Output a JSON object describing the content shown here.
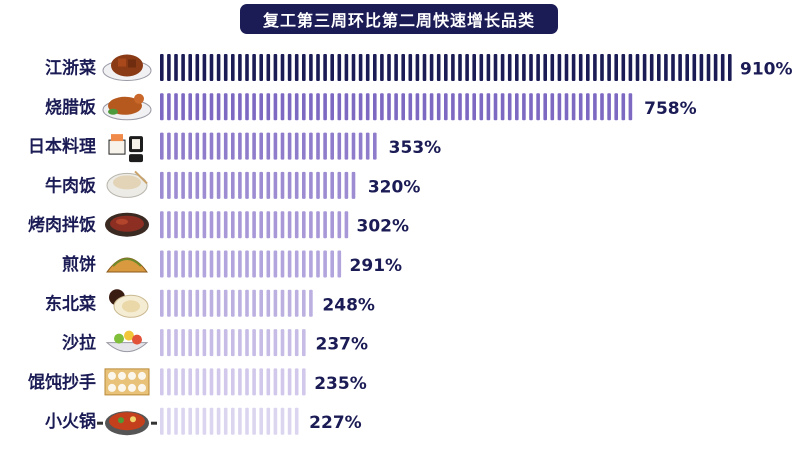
{
  "colors": {
    "title_bg": "#1b1b55",
    "text": "#1b1b55",
    "bar_shades": [
      "#1b1b55",
      "#7d68c2",
      "#8f7ccb",
      "#9d8cd2",
      "#a898d7",
      "#b2a4dc",
      "#bcb0e1",
      "#c6bce6",
      "#d1c8eb",
      "#dcd5f0"
    ]
  },
  "chart_data": {
    "type": "bar",
    "orientation": "horizontal",
    "title": "复工第三周环比第二周快速增长品类",
    "categories": [
      "江浙菜",
      "烧腊饭",
      "日本料理",
      "牛肉饭",
      "烤肉拌饭",
      "煎饼",
      "东北菜",
      "沙拉",
      "馄饨抄手",
      "小火锅"
    ],
    "values": [
      910,
      758,
      353,
      320,
      302,
      291,
      248,
      237,
      235,
      227
    ],
    "value_labels": [
      "910%",
      "758%",
      "353%",
      "320%",
      "302%",
      "291%",
      "248%",
      "237%",
      "235%",
      "227%"
    ],
    "unit": "%",
    "icons": [
      "braised-pork-dish-icon",
      "roast-duck-dish-icon",
      "sushi-icon",
      "beef-rice-bowl-icon",
      "grilled-meat-plate-icon",
      "pancake-icon",
      "dumpling-sauce-plate-icon",
      "salad-bowl-icon",
      "wonton-tray-icon",
      "hotpot-icon"
    ],
    "grid": false,
    "legend": "none"
  }
}
